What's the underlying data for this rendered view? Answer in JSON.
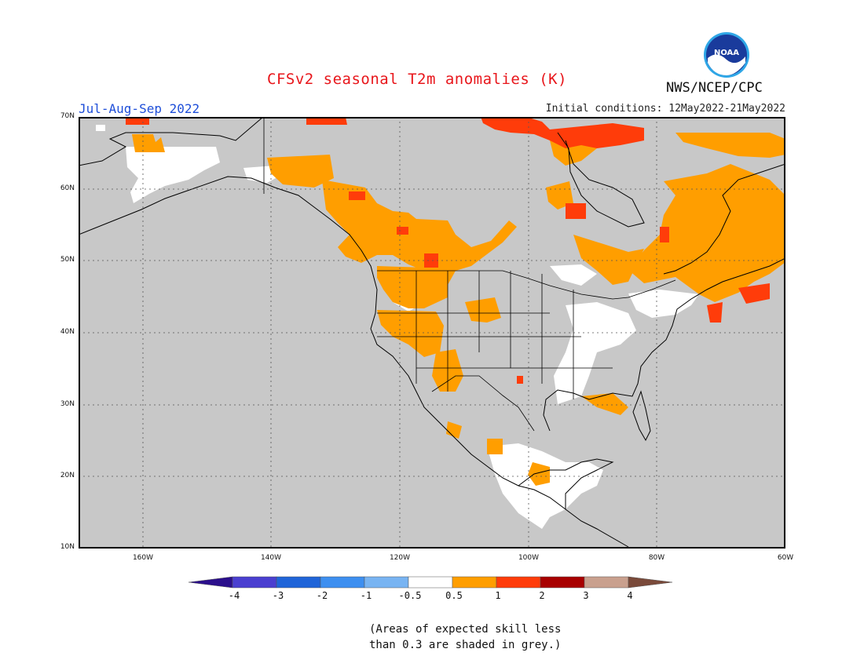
{
  "header": {
    "title": "CFSv2 seasonal T2m anomalies (K)",
    "season": "Jul-Aug-Sep 2022",
    "initial_conditions": "Initial conditions: 12May2022-21May2022",
    "agency": "NWS/NCEP/CPC",
    "logo_text": "NOAA"
  },
  "map": {
    "region": "North America",
    "projection": "cylindrical",
    "lat_range": [
      10,
      70
    ],
    "lon_range": [
      -170,
      -60
    ],
    "lat_labels": [
      "70N",
      "60N",
      "50N",
      "40N",
      "30N",
      "20N",
      "10N"
    ],
    "lon_labels": [
      "160W",
      "140W",
      "120W",
      "100W",
      "80W",
      "60W"
    ],
    "gridlines": "dotted",
    "colors": {
      "ocean_background": "#c8c8c8",
      "low_skill_grey": "#c8c8c8",
      "near_normal": "#ffffff",
      "warm_0_5_to_1": "#ff9e00",
      "warm_1_to_2": "#ff3c0a",
      "coastline": "#000000"
    }
  },
  "legend": {
    "tick_labels": [
      "-4",
      "-3",
      "-2",
      "-1",
      "-0.5",
      "0.5",
      "1",
      "2",
      "3",
      "4"
    ],
    "bins": [
      {
        "color": "#2b0f8c"
      },
      {
        "color": "#4a3fd0"
      },
      {
        "color": "#1f64d8"
      },
      {
        "color": "#3d8ff0"
      },
      {
        "color": "#78b4f2"
      },
      {
        "color": "#ffffff"
      },
      {
        "color": "#ff9e00"
      },
      {
        "color": "#ff3c0a"
      },
      {
        "color": "#a80000"
      },
      {
        "color": "#c9a08e"
      },
      {
        "color": "#7a4a3a"
      }
    ]
  },
  "note": {
    "line1": "(Areas of expected skill less",
    "line2": "than 0.3 are shaded in grey.)"
  }
}
